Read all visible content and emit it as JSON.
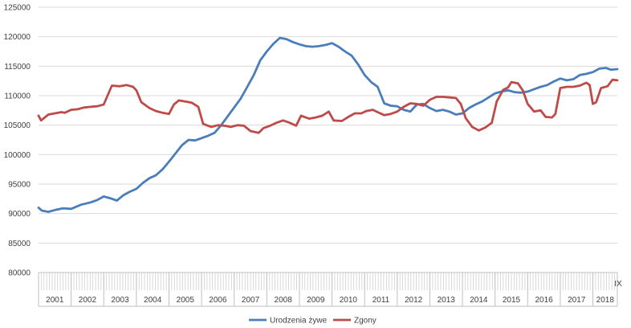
{
  "chart_data": {
    "type": "line",
    "title": "",
    "xlabel": "",
    "ylabel": "",
    "ylim": [
      80000,
      125000
    ],
    "y_ticks": [
      "80000",
      "85000",
      "90000",
      "95000",
      "100000",
      "105000",
      "110000",
      "115000",
      "120000",
      "125000"
    ],
    "x_years": [
      "2001",
      "2002",
      "2003",
      "2004",
      "2005",
      "2006",
      "2007",
      "2008",
      "2009",
      "2010",
      "2011",
      "2012",
      "2013",
      "2014",
      "2015",
      "2016",
      "2017",
      "2018"
    ],
    "x_end_label": "IX",
    "grid": true,
    "legend_position": "bottom",
    "series": [
      {
        "name": "Urodzenia żywe",
        "color": "#4a7ebb",
        "points": [
          [
            2001.0,
            91000
          ],
          [
            2001.1,
            90500
          ],
          [
            2001.3,
            90300
          ],
          [
            2001.5,
            90600
          ],
          [
            2001.75,
            90900
          ],
          [
            2002.0,
            90800
          ],
          [
            2002.3,
            91500
          ],
          [
            2002.6,
            91900
          ],
          [
            2002.8,
            92300
          ],
          [
            2003.0,
            92900
          ],
          [
            2003.2,
            92600
          ],
          [
            2003.4,
            92200
          ],
          [
            2003.6,
            93100
          ],
          [
            2003.8,
            93700
          ],
          [
            2004.0,
            94200
          ],
          [
            2004.2,
            95200
          ],
          [
            2004.4,
            96000
          ],
          [
            2004.6,
            96500
          ],
          [
            2004.8,
            97500
          ],
          [
            2005.0,
            98800
          ],
          [
            2005.2,
            100200
          ],
          [
            2005.4,
            101600
          ],
          [
            2005.6,
            102500
          ],
          [
            2005.8,
            102400
          ],
          [
            2006.0,
            102800
          ],
          [
            2006.2,
            103200
          ],
          [
            2006.4,
            103700
          ],
          [
            2006.6,
            105000
          ],
          [
            2006.8,
            106500
          ],
          [
            2007.0,
            108000
          ],
          [
            2007.2,
            109500
          ],
          [
            2007.4,
            111500
          ],
          [
            2007.6,
            113500
          ],
          [
            2007.8,
            116000
          ],
          [
            2008.0,
            117500
          ],
          [
            2008.2,
            118800
          ],
          [
            2008.4,
            119800
          ],
          [
            2008.6,
            119600
          ],
          [
            2008.8,
            119100
          ],
          [
            2009.0,
            118700
          ],
          [
            2009.2,
            118400
          ],
          [
            2009.4,
            118300
          ],
          [
            2009.6,
            118400
          ],
          [
            2009.8,
            118600
          ],
          [
            2010.0,
            118900
          ],
          [
            2010.2,
            118300
          ],
          [
            2010.4,
            117500
          ],
          [
            2010.6,
            116800
          ],
          [
            2010.8,
            115300
          ],
          [
            2011.0,
            113500
          ],
          [
            2011.2,
            112300
          ],
          [
            2011.4,
            111500
          ],
          [
            2011.6,
            108700
          ],
          [
            2011.8,
            108300
          ],
          [
            2012.0,
            108200
          ],
          [
            2012.2,
            107600
          ],
          [
            2012.4,
            107300
          ],
          [
            2012.6,
            108500
          ],
          [
            2012.8,
            108600
          ],
          [
            2013.0,
            107900
          ],
          [
            2013.2,
            107400
          ],
          [
            2013.4,
            107600
          ],
          [
            2013.6,
            107300
          ],
          [
            2013.8,
            106800
          ],
          [
            2014.0,
            107000
          ],
          [
            2014.2,
            107900
          ],
          [
            2014.4,
            108500
          ],
          [
            2014.6,
            109000
          ],
          [
            2014.8,
            109700
          ],
          [
            2015.0,
            110400
          ],
          [
            2015.2,
            110700
          ],
          [
            2015.4,
            110900
          ],
          [
            2015.6,
            110600
          ],
          [
            2015.8,
            110500
          ],
          [
            2016.0,
            110700
          ],
          [
            2016.2,
            111100
          ],
          [
            2016.4,
            111500
          ],
          [
            2016.6,
            111800
          ],
          [
            2016.8,
            112400
          ],
          [
            2017.0,
            112900
          ],
          [
            2017.2,
            112600
          ],
          [
            2017.4,
            112800
          ],
          [
            2017.6,
            113500
          ],
          [
            2017.8,
            113700
          ],
          [
            2018.0,
            114000
          ],
          [
            2018.2,
            114600
          ],
          [
            2018.4,
            114700
          ],
          [
            2018.55,
            114400
          ],
          [
            2018.75,
            114500
          ]
        ]
      },
      {
        "name": "Zgony",
        "color": "#be4b48",
        "points": [
          [
            2001.0,
            106600
          ],
          [
            2001.08,
            105800
          ],
          [
            2001.3,
            106800
          ],
          [
            2001.5,
            107000
          ],
          [
            2001.7,
            107200
          ],
          [
            2001.8,
            107100
          ],
          [
            2002.0,
            107600
          ],
          [
            2002.2,
            107700
          ],
          [
            2002.4,
            108000
          ],
          [
            2002.6,
            108100
          ],
          [
            2002.8,
            108200
          ],
          [
            2003.0,
            108500
          ],
          [
            2003.1,
            109800
          ],
          [
            2003.25,
            111700
          ],
          [
            2003.5,
            111600
          ],
          [
            2003.7,
            111800
          ],
          [
            2003.9,
            111500
          ],
          [
            2004.0,
            110900
          ],
          [
            2004.15,
            108900
          ],
          [
            2004.4,
            107900
          ],
          [
            2004.6,
            107400
          ],
          [
            2004.8,
            107100
          ],
          [
            2005.0,
            106900
          ],
          [
            2005.15,
            108500
          ],
          [
            2005.3,
            109200
          ],
          [
            2005.5,
            109000
          ],
          [
            2005.7,
            108800
          ],
          [
            2005.9,
            108100
          ],
          [
            2006.05,
            105200
          ],
          [
            2006.3,
            104700
          ],
          [
            2006.5,
            105000
          ],
          [
            2006.7,
            104900
          ],
          [
            2006.9,
            104700
          ],
          [
            2007.1,
            105000
          ],
          [
            2007.3,
            104900
          ],
          [
            2007.5,
            104000
          ],
          [
            2007.75,
            103700
          ],
          [
            2007.9,
            104500
          ],
          [
            2008.1,
            104900
          ],
          [
            2008.3,
            105400
          ],
          [
            2008.5,
            105800
          ],
          [
            2008.7,
            105400
          ],
          [
            2008.9,
            104900
          ],
          [
            2009.05,
            106600
          ],
          [
            2009.3,
            106100
          ],
          [
            2009.5,
            106300
          ],
          [
            2009.7,
            106600
          ],
          [
            2009.9,
            107300
          ],
          [
            2010.05,
            105800
          ],
          [
            2010.3,
            105700
          ],
          [
            2010.5,
            106400
          ],
          [
            2010.7,
            107000
          ],
          [
            2010.9,
            107000
          ],
          [
            2011.05,
            107400
          ],
          [
            2011.25,
            107600
          ],
          [
            2011.4,
            107200
          ],
          [
            2011.6,
            106700
          ],
          [
            2011.8,
            106900
          ],
          [
            2012.0,
            107300
          ],
          [
            2012.2,
            108100
          ],
          [
            2012.4,
            108700
          ],
          [
            2012.6,
            108600
          ],
          [
            2012.8,
            108300
          ],
          [
            2013.0,
            109300
          ],
          [
            2013.2,
            109800
          ],
          [
            2013.4,
            109800
          ],
          [
            2013.6,
            109700
          ],
          [
            2013.8,
            109600
          ],
          [
            2013.95,
            108600
          ],
          [
            2014.1,
            106200
          ],
          [
            2014.3,
            104700
          ],
          [
            2014.5,
            104100
          ],
          [
            2014.7,
            104600
          ],
          [
            2014.9,
            105400
          ],
          [
            2015.05,
            109000
          ],
          [
            2015.25,
            111000
          ],
          [
            2015.4,
            111400
          ],
          [
            2015.5,
            112300
          ],
          [
            2015.7,
            112100
          ],
          [
            2015.85,
            110900
          ],
          [
            2016.0,
            108600
          ],
          [
            2016.2,
            107300
          ],
          [
            2016.4,
            107500
          ],
          [
            2016.55,
            106400
          ],
          [
            2016.75,
            106300
          ],
          [
            2016.85,
            106900
          ],
          [
            2017.0,
            111300
          ],
          [
            2017.2,
            111500
          ],
          [
            2017.4,
            111500
          ],
          [
            2017.6,
            111700
          ],
          [
            2017.8,
            112200
          ],
          [
            2017.9,
            111800
          ],
          [
            2018.0,
            108600
          ],
          [
            2018.1,
            108900
          ],
          [
            2018.25,
            111300
          ],
          [
            2018.45,
            111600
          ],
          [
            2018.6,
            112700
          ],
          [
            2018.75,
            112600
          ]
        ]
      }
    ]
  }
}
